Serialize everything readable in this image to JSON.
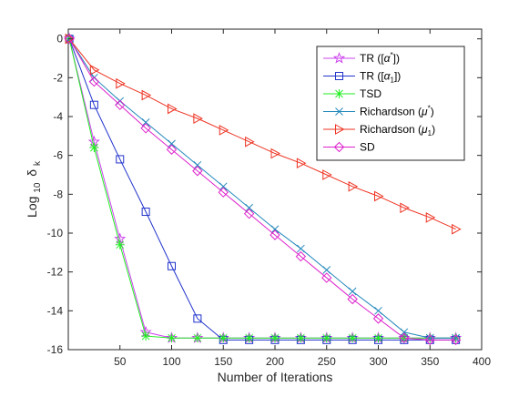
{
  "chart_data": {
    "type": "line",
    "xlabel": "Number of Iterations",
    "ylabel": {
      "base": "Log",
      "sub": "10",
      "sym": "δ",
      "symsub": "k"
    },
    "xlim": [
      0,
      400
    ],
    "ylim": [
      -16,
      0.5
    ],
    "xticks": [
      50,
      100,
      150,
      200,
      250,
      300,
      350,
      400
    ],
    "yticks": [
      0,
      -2,
      -4,
      -6,
      -8,
      -10,
      -12,
      -14,
      -16
    ],
    "grid": false,
    "legend_position": "top-right",
    "series": [
      {
        "name": "TR ([α*])",
        "legend_parts": {
          "base": "TR ([",
          "sym": "α",
          "sup": "*",
          "tail": "])"
        },
        "color": "#cc44ee",
        "marker": "star",
        "x": [
          1,
          25,
          50,
          75,
          100,
          125,
          150,
          175,
          200,
          225,
          250,
          275,
          300,
          325,
          350,
          375
        ],
        "y": [
          0,
          -5.3,
          -10.3,
          -15.1,
          -15.4,
          -15.4,
          -15.4,
          -15.4,
          -15.4,
          -15.4,
          -15.4,
          -15.4,
          -15.4,
          -15.4,
          -15.4,
          -15.4
        ]
      },
      {
        "name": "TR ([α1])",
        "legend_parts": {
          "base": "TR ([",
          "sym": "α",
          "sub": "1",
          "tail": "])"
        },
        "color": "#2233cc",
        "marker": "square",
        "x": [
          1,
          25,
          50,
          75,
          100,
          125,
          150,
          175,
          200,
          225,
          250,
          275,
          300,
          325,
          350,
          375
        ],
        "y": [
          0,
          -3.4,
          -6.2,
          -8.9,
          -11.7,
          -14.4,
          -15.5,
          -15.5,
          -15.5,
          -15.5,
          -15.5,
          -15.5,
          -15.5,
          -15.5,
          -15.5,
          -15.5
        ]
      },
      {
        "name": "TSD",
        "legend_parts": {
          "base": "TSD"
        },
        "color": "#22ee22",
        "marker": "asterisk",
        "x": [
          1,
          25,
          50,
          75,
          100,
          125,
          150,
          175,
          200,
          225,
          250,
          275,
          300,
          325,
          350,
          375
        ],
        "y": [
          0,
          -5.6,
          -10.6,
          -15.3,
          -15.4,
          -15.4,
          -15.4,
          -15.4,
          -15.4,
          -15.4,
          -15.4,
          -15.4,
          -15.4,
          -15.4,
          -15.4,
          -15.4
        ]
      },
      {
        "name": "Richardson (μ*)",
        "legend_parts": {
          "base": "Richardson (",
          "sym": "μ",
          "sup": "*",
          "tail": ")"
        },
        "color": "#2288bb",
        "marker": "x",
        "x": [
          1,
          25,
          50,
          75,
          100,
          125,
          150,
          175,
          200,
          225,
          250,
          275,
          300,
          325,
          350,
          375
        ],
        "y": [
          0,
          -2.0,
          -3.2,
          -4.3,
          -5.4,
          -6.5,
          -7.6,
          -8.7,
          -9.8,
          -10.8,
          -11.9,
          -13.0,
          -14.0,
          -15.1,
          -15.4,
          -15.4
        ]
      },
      {
        "name": "Richardson (μ1)",
        "legend_parts": {
          "base": "Richardson (",
          "sym": "μ",
          "sub": "1",
          "tail": ")"
        },
        "color": "#ee3322",
        "marker": "triangle-right",
        "x": [
          1,
          25,
          50,
          75,
          100,
          125,
          150,
          175,
          200,
          225,
          250,
          275,
          300,
          325,
          350,
          375
        ],
        "y": [
          0,
          -1.6,
          -2.3,
          -2.9,
          -3.6,
          -4.1,
          -4.7,
          -5.3,
          -5.9,
          -6.4,
          -7.0,
          -7.6,
          -8.1,
          -8.7,
          -9.2,
          -9.8
        ]
      },
      {
        "name": "SD",
        "legend_parts": {
          "base": "SD"
        },
        "color": "#dd22cc",
        "marker": "diamond",
        "x": [
          1,
          25,
          50,
          75,
          100,
          125,
          150,
          175,
          200,
          225,
          250,
          275,
          300,
          325,
          350,
          375
        ],
        "y": [
          0,
          -2.2,
          -3.4,
          -4.6,
          -5.7,
          -6.8,
          -7.9,
          -9.0,
          -10.1,
          -11.2,
          -12.3,
          -13.4,
          -14.4,
          -15.4,
          -15.5,
          -15.5
        ]
      }
    ]
  }
}
